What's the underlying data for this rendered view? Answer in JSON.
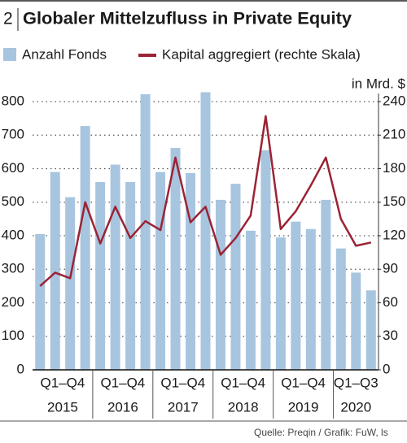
{
  "chart_data": {
    "type": "bar_line",
    "number": "2",
    "title": "Globaler Mittelzufluss in Private Equity",
    "y2_label": "in Mrd. $",
    "source": "Quelle: Preqin / Grafik: FuW, ls",
    "categories": [
      null,
      null,
      null,
      null,
      null,
      null,
      null,
      null,
      null,
      null,
      null,
      null,
      null,
      null,
      null,
      null,
      null,
      null,
      null,
      null,
      null,
      null,
      null
    ],
    "groups": [
      {
        "period": "Q1–Q4",
        "year": "2015"
      },
      {
        "period": "Q1–Q4",
        "year": "2016"
      },
      {
        "period": "Q1–Q4",
        "year": "2017"
      },
      {
        "period": "Q1–Q4",
        "year": "2018"
      },
      {
        "period": "Q1–Q4",
        "year": "2019"
      },
      {
        "period": "Q1–Q3",
        "year": "2020"
      }
    ],
    "series": [
      {
        "name": "Anzahl Fonds",
        "type": "bar",
        "color": "#a8c5df",
        "values": [
          405,
          590,
          515,
          727,
          560,
          612,
          560,
          822,
          590,
          662,
          587,
          828,
          507,
          555,
          415,
          655,
          395,
          442,
          420,
          507,
          362,
          290,
          237
        ]
      },
      {
        "name": "Kapital aggregiert (rechte Skala)",
        "type": "line",
        "axis": "y2",
        "color": "#9b2335",
        "values": [
          75,
          87,
          82,
          150,
          113,
          146,
          118,
          133,
          125,
          190,
          132,
          146,
          103,
          118,
          138,
          227,
          126,
          142,
          165,
          190,
          135,
          111,
          114
        ]
      }
    ],
    "ylim": [
      0,
      800
    ],
    "yticks": [
      0,
      100,
      200,
      300,
      400,
      500,
      600,
      700,
      800
    ],
    "y2lim": [
      0,
      240
    ],
    "y2ticks": [
      0,
      30,
      60,
      90,
      120,
      150,
      180,
      210,
      240
    ],
    "grid": true
  }
}
